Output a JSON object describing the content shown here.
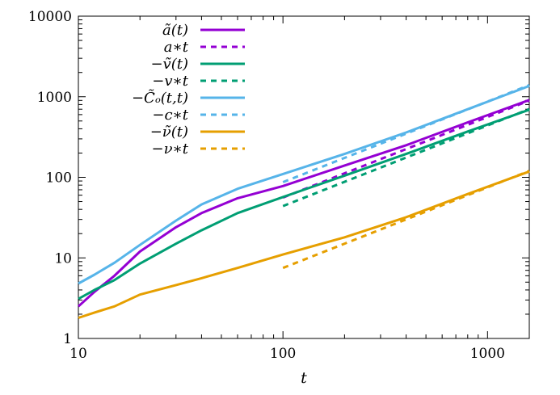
{
  "chart_data": {
    "type": "line",
    "xlabel": "t",
    "ylabel": "",
    "xscale": "log",
    "yscale": "log",
    "xlim": [
      10,
      1600
    ],
    "ylim": [
      1,
      10000
    ],
    "xticks": [
      10,
      100,
      1000
    ],
    "xtick_labels": [
      "10",
      "100",
      "1000"
    ],
    "yticks": [
      1,
      10,
      100,
      1000,
      10000
    ],
    "ytick_labels": [
      "1",
      "10",
      "100",
      "1000",
      "10000"
    ],
    "grid": false,
    "legend_position": "top-left",
    "series": [
      {
        "name": "ã(t)",
        "color": "#9400d3",
        "dash": false,
        "x": [
          10,
          12,
          15,
          20,
          30,
          40,
          60,
          100,
          200,
          400,
          800,
          1600
        ],
        "y": [
          2.5,
          3.8,
          6.0,
          12,
          24,
          36,
          55,
          78,
          140,
          250,
          480,
          910
        ]
      },
      {
        "name": "a∗t",
        "color": "#9400d3",
        "dash": true,
        "x": [
          100,
          1600
        ],
        "y": [
          56,
          896
        ]
      },
      {
        "name": "−ṽ(t)",
        "color": "#009e73",
        "dash": false,
        "x": [
          10,
          12,
          15,
          20,
          30,
          40,
          60,
          100,
          200,
          400,
          800,
          1600
        ],
        "y": [
          3.1,
          4.0,
          5.3,
          8.5,
          15,
          22,
          36,
          57,
          105,
          195,
          370,
          690
        ]
      },
      {
        "name": "−v∗t",
        "color": "#009e73",
        "dash": true,
        "x": [
          100,
          1600
        ],
        "y": [
          44,
          704
        ]
      },
      {
        "name": "−C̃ₒ(t,t)",
        "color": "#56b4e9",
        "dash": false,
        "x": [
          10,
          12,
          15,
          20,
          30,
          40,
          60,
          100,
          200,
          400,
          800,
          1600
        ],
        "y": [
          4.8,
          6.2,
          8.7,
          14.5,
          29,
          46,
          72,
          110,
          195,
          360,
          700,
          1360
        ]
      },
      {
        "name": "−c∗t",
        "color": "#56b4e9",
        "dash": true,
        "x": [
          100,
          1600
        ],
        "y": [
          87,
          1392
        ]
      },
      {
        "name": "−ν̃(t)",
        "color": "#e69f00",
        "dash": false,
        "x": [
          10,
          12,
          15,
          20,
          30,
          40,
          60,
          100,
          200,
          400,
          800,
          1600
        ],
        "y": [
          1.8,
          2.1,
          2.5,
          3.5,
          4.6,
          5.6,
          7.5,
          11,
          18,
          32,
          62,
          118
        ]
      },
      {
        "name": "−ν∗t",
        "color": "#e69f00",
        "dash": true,
        "x": [
          100,
          1600
        ],
        "y": [
          7.5,
          120
        ]
      }
    ]
  }
}
